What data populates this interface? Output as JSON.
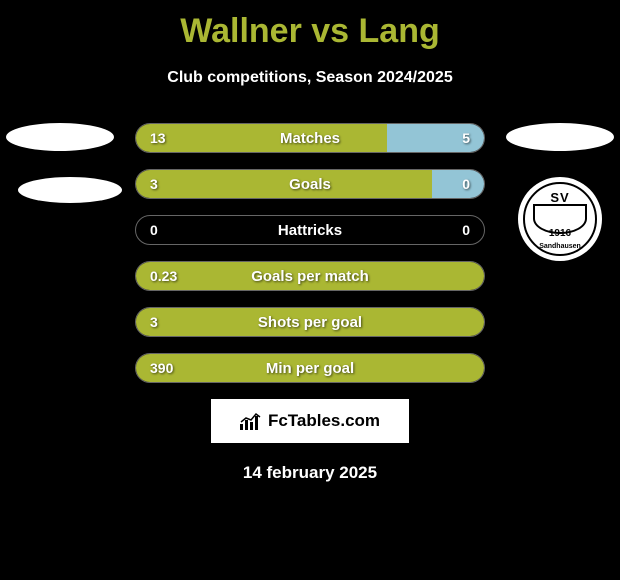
{
  "title": "Wallner vs Lang",
  "subtitle": "Club competitions, Season 2024/2025",
  "colors": {
    "left": "#aab733",
    "right": "#93c5d6",
    "background": "#000000",
    "white": "#ffffff"
  },
  "stats": [
    {
      "label": "Matches",
      "left_value": "13",
      "right_value": "5",
      "left_pct": 72,
      "right_pct": 28
    },
    {
      "label": "Goals",
      "left_value": "3",
      "right_value": "0",
      "left_pct": 85,
      "right_pct": 15
    },
    {
      "label": "Hattricks",
      "left_value": "0",
      "right_value": "0",
      "left_pct": 2,
      "right_pct": 2
    },
    {
      "label": "Goals per match",
      "left_value": "0.23",
      "right_value": "",
      "left_pct": 100,
      "right_pct": 0
    },
    {
      "label": "Shots per goal",
      "left_value": "3",
      "right_value": "",
      "left_pct": 100,
      "right_pct": 0
    },
    {
      "label": "Min per goal",
      "left_value": "390",
      "right_value": "",
      "left_pct": 100,
      "right_pct": 0
    }
  ],
  "badge": {
    "top_text": "SV",
    "center_text": "Sandhausen",
    "year": "1916"
  },
  "brand": "FcTables.com",
  "date": "14 february 2025"
}
